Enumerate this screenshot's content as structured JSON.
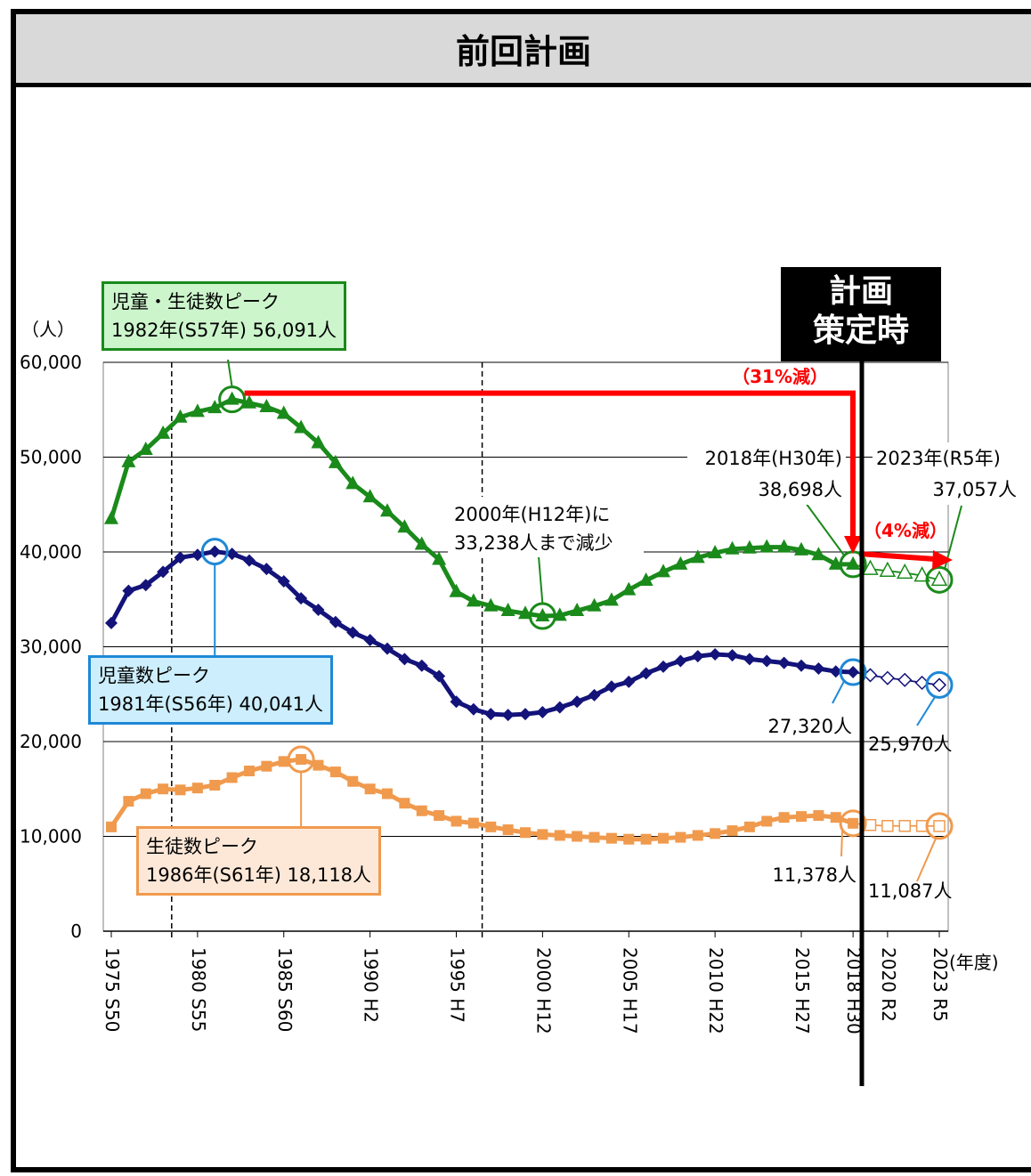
{
  "header": {
    "title": "前回計画"
  },
  "plan_marker": {
    "line1": "計画",
    "line2": "策定時"
  },
  "chart_data": {
    "type": "line",
    "ylabel": "（人）",
    "xunit": "(年度)",
    "ylim": [
      0,
      60000
    ],
    "yticks": [
      0,
      10000,
      20000,
      30000,
      40000,
      50000,
      60000
    ],
    "ytick_labels": [
      "0",
      "10,000",
      "20,000",
      "30,000",
      "40,000",
      "50,000",
      "60,000"
    ],
    "xlim": [
      1975,
      2023
    ],
    "xticks": [
      {
        "x": 1975,
        "label": "1975 S50"
      },
      {
        "x": 1980,
        "label": "1980 S55"
      },
      {
        "x": 1985,
        "label": "1985 S60"
      },
      {
        "x": 1990,
        "label": "1990 H2"
      },
      {
        "x": 1995,
        "label": "1995 H7"
      },
      {
        "x": 2000,
        "label": "2000 H12"
      },
      {
        "x": 2005,
        "label": "2005 H17"
      },
      {
        "x": 2010,
        "label": "2010 H22"
      },
      {
        "x": 2015,
        "label": "2015 H27"
      },
      {
        "x": 2018,
        "label": "2018 H30"
      },
      {
        "x": 2020,
        "label": "2020 R2"
      },
      {
        "x": 2023,
        "label": "2023 R5"
      }
    ],
    "grid": true,
    "plan_year": 2018,
    "dashed_lines_x": [
      1978.5,
      1996.5
    ],
    "x": [
      1975,
      1976,
      1977,
      1978,
      1979,
      1980,
      1981,
      1982,
      1983,
      1984,
      1985,
      1986,
      1987,
      1988,
      1989,
      1990,
      1991,
      1992,
      1993,
      1994,
      1995,
      1996,
      1997,
      1998,
      1999,
      2000,
      2001,
      2002,
      2003,
      2004,
      2005,
      2006,
      2007,
      2008,
      2009,
      2010,
      2011,
      2012,
      2013,
      2014,
      2015,
      2016,
      2017,
      2018,
      2019,
      2020,
      2021,
      2022,
      2023
    ],
    "series": [
      {
        "name": "児童・生徒数",
        "color": "#1a8a1a",
        "marker": "triangle",
        "projected_from": 2018,
        "values": [
          43500,
          49500,
          50800,
          52500,
          54200,
          54800,
          55200,
          56091,
          55700,
          55300,
          54600,
          53100,
          51500,
          49400,
          47200,
          45800,
          44300,
          42600,
          40800,
          39200,
          35800,
          34800,
          34300,
          33800,
          33500,
          33238,
          33300,
          33800,
          34300,
          34900,
          36000,
          37000,
          37900,
          38700,
          39400,
          39900,
          40300,
          40400,
          40500,
          40500,
          40200,
          39700,
          38700,
          38698,
          38200,
          38000,
          37800,
          37500,
          37057
        ]
      },
      {
        "name": "児童数",
        "color": "#13137a",
        "marker": "diamond",
        "projected_from": 2018,
        "values": [
          32500,
          35900,
          36500,
          37900,
          39400,
          39700,
          40041,
          39800,
          39100,
          38200,
          36900,
          35100,
          33900,
          32600,
          31500,
          30700,
          29800,
          28700,
          28000,
          26900,
          24200,
          23400,
          22900,
          22800,
          22900,
          23100,
          23600,
          24200,
          24900,
          25800,
          26300,
          27200,
          27900,
          28500,
          29000,
          29200,
          29100,
          28700,
          28500,
          28300,
          28000,
          27700,
          27400,
          27320,
          27000,
          26700,
          26500,
          26200,
          25970
        ]
      },
      {
        "name": "生徒数",
        "color": "#f09a4e",
        "marker": "square",
        "projected_from": 2018,
        "values": [
          11000,
          13700,
          14500,
          15000,
          14900,
          15100,
          15400,
          16200,
          16900,
          17400,
          17900,
          18118,
          17500,
          16800,
          15800,
          15000,
          14500,
          13500,
          12700,
          12200,
          11600,
          11400,
          11000,
          10700,
          10400,
          10200,
          10100,
          10000,
          9900,
          9800,
          9700,
          9700,
          9800,
          9900,
          10100,
          10300,
          10600,
          11000,
          11600,
          12000,
          12100,
          12200,
          12000,
          11378,
          11200,
          11100,
          11100,
          11100,
          11087
        ]
      }
    ],
    "annotations": {
      "total_peak": {
        "line1": "児童・生徒数ピーク",
        "line2": "1982年(S57年) 56,091人"
      },
      "child_peak": {
        "line1": "児童数ピーク",
        "line2": "1981年(S56年) 40,041人"
      },
      "student_peak": {
        "line1": "生徒数ピーク",
        "line2": "1986年(S61年) 18,118人"
      },
      "min_2000": {
        "line1": "2000年(H12年)に",
        "line2": "33,238人まで減少"
      },
      "total_2018": {
        "line1": "2018年(H30年)",
        "line2": "38,698人"
      },
      "total_2023": {
        "line1": "2023年(R5年)",
        "line2": "37,057人"
      },
      "reduction_31": "（31%減）",
      "reduction_4": "（4%減）",
      "child_2018": "27,320人",
      "child_2023": "25,970人",
      "student_2018": "11,378人",
      "student_2023": "11,087人"
    }
  }
}
